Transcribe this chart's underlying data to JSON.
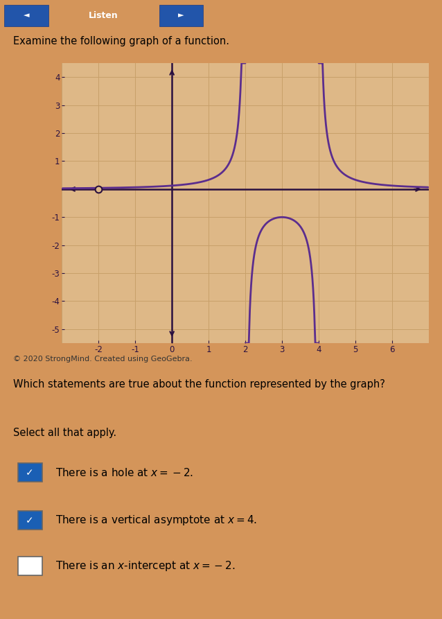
{
  "title_top": "Listen",
  "subtitle": "Examine the following graph of a function.",
  "copyright": "© 2020 StrongMind. Created using GeoGebra.",
  "question": "Which statements are true about the function represented by the graph?",
  "instruction": "Select all that apply.",
  "choices": [
    {
      "label": "There is a hole at $x = -2.$",
      "checked": true
    },
    {
      "label": "There is a vertical asymptote at $x = 4.$",
      "checked": true
    },
    {
      "label": "There is an $x$-intercept at $x = -2.$",
      "checked": false
    }
  ],
  "graph": {
    "xlim": [
      -3,
      7
    ],
    "ylim": [
      -5.5,
      4.5
    ],
    "xticks": [
      -2,
      -1,
      0,
      1,
      2,
      3,
      4,
      5,
      6
    ],
    "yticks": [
      -5,
      -4,
      -3,
      -2,
      -1,
      1,
      2,
      3,
      4
    ],
    "hole_x": -2,
    "hole_y": 0,
    "curve_color": "#5b2d8e",
    "bg_color": "#deb887",
    "grid_color": "#c8a06a",
    "axis_color": "#2a1040"
  },
  "page_bg": "#d4955a",
  "lower_bg": "#d4955a",
  "top_bar_bg": "#4a90d9",
  "top_bar_text": "white",
  "checkbox_checked_color": "#1a5fb4",
  "checkbox_unchecked_color": "#ffffff"
}
